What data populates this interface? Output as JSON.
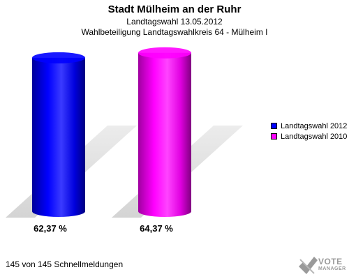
{
  "header": {
    "title": "Stadt Mülheim an der Ruhr",
    "subtitle1": "Landtagswahl 13.05.2012",
    "subtitle2": "Wahlbeteiligung Landtagswahlkreis 64 - Mülheim I"
  },
  "chart_data": {
    "type": "bar",
    "categories": [
      "Landtagswahl 2012",
      "Landtagswahl 2010"
    ],
    "values": [
      62.37,
      64.37
    ],
    "data_labels": [
      "62,37 %",
      "64,37 %"
    ],
    "colors": [
      "#0000ff",
      "#ff00ff"
    ],
    "legend": {
      "position": "right",
      "entries": [
        "Landtagswahl 2012",
        "Landtagswahl 2010"
      ]
    },
    "grid": false,
    "style": "3d-cylinder"
  },
  "footer": {
    "status": "145 von 145 Schnellmeldungen"
  },
  "logo": {
    "text_line1": "VOTE",
    "text_line2": "MANAGER"
  }
}
